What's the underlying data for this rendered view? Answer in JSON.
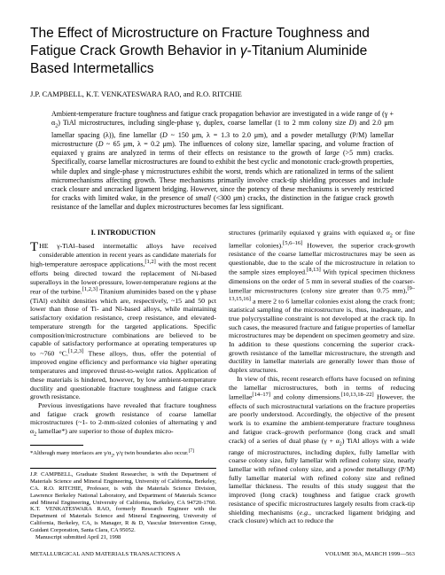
{
  "title_l1": "The Effect of Microstructure on Fracture Toughness and",
  "title_l2_a": "Fatigue Crack Growth Behavior in ",
  "title_l2_b": "γ",
  "title_l2_c": "-Titanium Aluminide",
  "title_l3": "Based Intermetallics",
  "authors": "J.P. CAMPBELL, K.T. VENKATESWARA RAO, and R.O. RITCHIE",
  "abstract_a": "Ambient-temperature fracture toughness and fatigue crack propagation behavior are investigated in a wide range of (γ + α",
  "abstract_b": ") TiAl microstructures, including single-phase γ, duplex, coarse lamellar (1 to 2 mm colony size ",
  "abstract_c": ") and 2.0 μm lamellar spacing (λ)), fine lamellar (",
  "abstract_d": " ~ 150 μm, λ = 1.3 to 2.0 μm), and a powder metallurgy (P/M) lamellar microstructure (",
  "abstract_e": " ~ 65 μm, λ = 0.2 μm). The influences of colony size, lamellar spacing, and volume fraction of equiaxed γ grains are analyzed in terms of their effects on resistance to the growth of ",
  "abstract_f": " (>5 mm) cracks. Specifically, coarse lamellar microstructures are found to exhibit the best cyclic and monotonic crack-growth properties, while duplex and single-phase γ microstructures exhibit the worst, trends which are rationalized in terms of the salient micromechanisms affecting growth. These mechanisms primarily involve crack-tip shielding processes and include crack closure and uncracked ligament bridging. However, since the potency of these mechanisms is severely restricted for cracks with limited wake, in the presence of ",
  "abstract_g": " (<300 μm) cracks, the distinction in the fatigue crack growth resistance of the lamellar and duplex microstructures becomes far less significant.",
  "sec1_head": "I.   INTRODUCTION",
  "col1_p1_a": "HE γ-TiAl–based intermetallic alloys have received considerable attention in recent years as candidate materials for high-temperature aerospace applications,",
  "col1_p1_b": " with the most recent efforts being directed toward the replacement of Ni-based superalloys in the lower-pressure, lower-temperature regions at the rear of the turbine.",
  "col1_p1_c": " Titanium aluminides based on the γ phase (TiAl) exhibit densities which are, respectively, ~15 and 50 pct lower than those of Ti- and Ni-based alloys, while maintaining satisfactory oxidation resistance, creep resistance, and elevated-temperature strength for the targeted applications. Specific composition/microstructure combinations are believed to be capable of satisfactory performance at operating temperatures up to ~760 °C.",
  "col1_p1_d": " These alloys, thus, offer the potential of improved engine efficiency and performance ",
  "col1_p1_e": " higher operating temperatures and improved thrust-to-weight ratios. Application of these materials is hindered, however, by low ambient-temperature ductility and questionable fracture toughness and fatigue crack growth resistance.",
  "col1_p2_a": "Previous investigations have revealed that fracture toughness and fatigue crack growth resistance of coarse lamellar microstructures (~1- to 2-mm-sized colonies of alternating γ and α",
  "col1_p2_b": " lamellae*) are superior to those of duplex micro-",
  "footnote_a": "*Although many interfaces are γ/α",
  "footnote_b": ", γ/γ twin boundaries also occur.",
  "affil": "J.P. CAMPBELL, Graduate Student Researcher, is with the Department of Materials Science and Mineral Engineering, University of California, Berkeley, CA. R.O. RITCHIE, Professor, is with the Materials Science Division, Lawrence Berkeley National Laboratory, and Department of Materials Science and Mineral Engineering, University of California, Berkeley, CA 94720-1760. K.T. VENKATESWARA RAO, formerly Research Engineer with the Department of Materials Science and Mineral Engineering, University of California, Berkeley, CA, is Manager, R & D, Vascular Intervention Group, Guidant Corporation, Santa Clara, CA 95052.",
  "affil_date": "Manuscript submitted April 21, 1998",
  "col2_p1_a": "structures (primarily equiaxed γ grains with equiaxed α",
  "col2_p1_b": " or fine lamellar colonies).",
  "col2_p1_c": " However, the superior crack-growth resistance of the coarse lamellar microstructures may be seen as questionable, due to the scale of the microstructure in relation to the sample sizes employed.",
  "col2_p1_d": " With typical specimen thickness dimensions on the order of 5 mm in several studies of the coarser-lamellar microstructures (colony size greater than 0.75 mm),",
  "col2_p1_e": " a mere 2 to 6 lamellar colonies exist along the crack front; statistical sampling of the microstructure is, thus, inadequate, and true polycrystalline constraint is not developed at the crack tip. In such cases, the measured fracture and fatigue properties of lamellar microstructures may be dependent on specimen geometry and size. In addition to these questions concerning the superior crack-growth resistance of the lamellar microstructure, the strength and ductility in lamellar materials are generally lower than those of duplex structures.",
  "col2_p2_a": "In view of this, recent research efforts have focused on refining the lamellar microstructures, both in terms of reducing lamellae",
  "col2_p2_b": " and colony dimensions.",
  "col2_p2_c": " However, the effects of such microstructural variations on the fracture properties are poorly understood. Accordingly, the objective of the present work is to examine the ambient-temperature fracture toughness and fatigue crack–growth performance (long crack and small crack) of a series of dual phase (γ + α",
  "col2_p2_d": ") TiAl alloys with a wide range of microstructures, including duplex, fully lamellar with coarse colony size, fully lamellar with refined colony size, nearly lamellar with refined colony size, and a powder metallurgy (P/M) fully lamellar material with refined colony size and refined lamellar thickness. The results of this study suggest that the improved (long crack) toughness and fatigue crack growth resistance of specific microstructures largely results from crack-tip shielding mechanisms (",
  "col2_p2_e": ", uncracked ligament bridging and crack closure) which act to reduce the",
  "footer_left": "METALLURGICAL AND MATERIALS TRANSACTIONS A",
  "footer_right": "VOLUME 30A, MARCH 1999—563"
}
